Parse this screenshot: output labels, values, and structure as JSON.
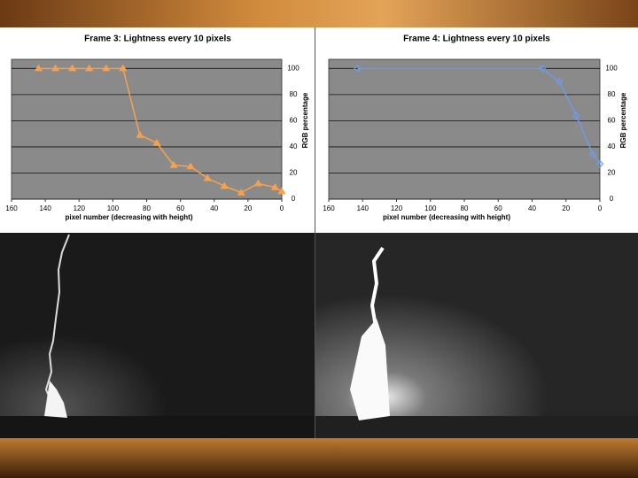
{
  "chart_data": [
    {
      "type": "line",
      "title": "Frame 3: Lightness every 10 pixels",
      "x": [
        144,
        134,
        124,
        114,
        104,
        94,
        84,
        74,
        64,
        54,
        44,
        34,
        24,
        14,
        4,
        0
      ],
      "values": [
        100,
        100,
        100,
        100,
        100,
        100,
        49,
        43,
        26,
        25,
        16,
        10,
        5,
        12,
        9,
        6
      ],
      "color": "#f7a14e",
      "marker": "triangle",
      "xlim": [
        160,
        0
      ],
      "xticks": [
        160,
        140,
        120,
        100,
        80,
        60,
        40,
        20,
        0
      ],
      "ylim": [
        0,
        107
      ],
      "yticks": [
        0,
        20,
        40,
        60,
        80,
        100
      ],
      "xlabel": "pixel number (decreasing with height)",
      "ylabel": "RGB percentage",
      "grid": true
    },
    {
      "type": "line",
      "title": "Frame 4: Lightness every 10 pixels",
      "x": [
        143,
        34,
        24,
        14,
        4,
        0
      ],
      "values": [
        100,
        100,
        90,
        64,
        34,
        27
      ],
      "color": "#6f9ce6",
      "marker": "diamond",
      "xlim": [
        160,
        0
      ],
      "xticks": [
        160,
        140,
        120,
        100,
        80,
        60,
        40,
        20,
        0
      ],
      "ylim": [
        0,
        107
      ],
      "yticks": [
        0,
        20,
        40,
        60,
        80,
        100
      ],
      "xlabel": "pixel number (decreasing with height)",
      "ylabel": "RGB percentage",
      "grid": true
    }
  ]
}
